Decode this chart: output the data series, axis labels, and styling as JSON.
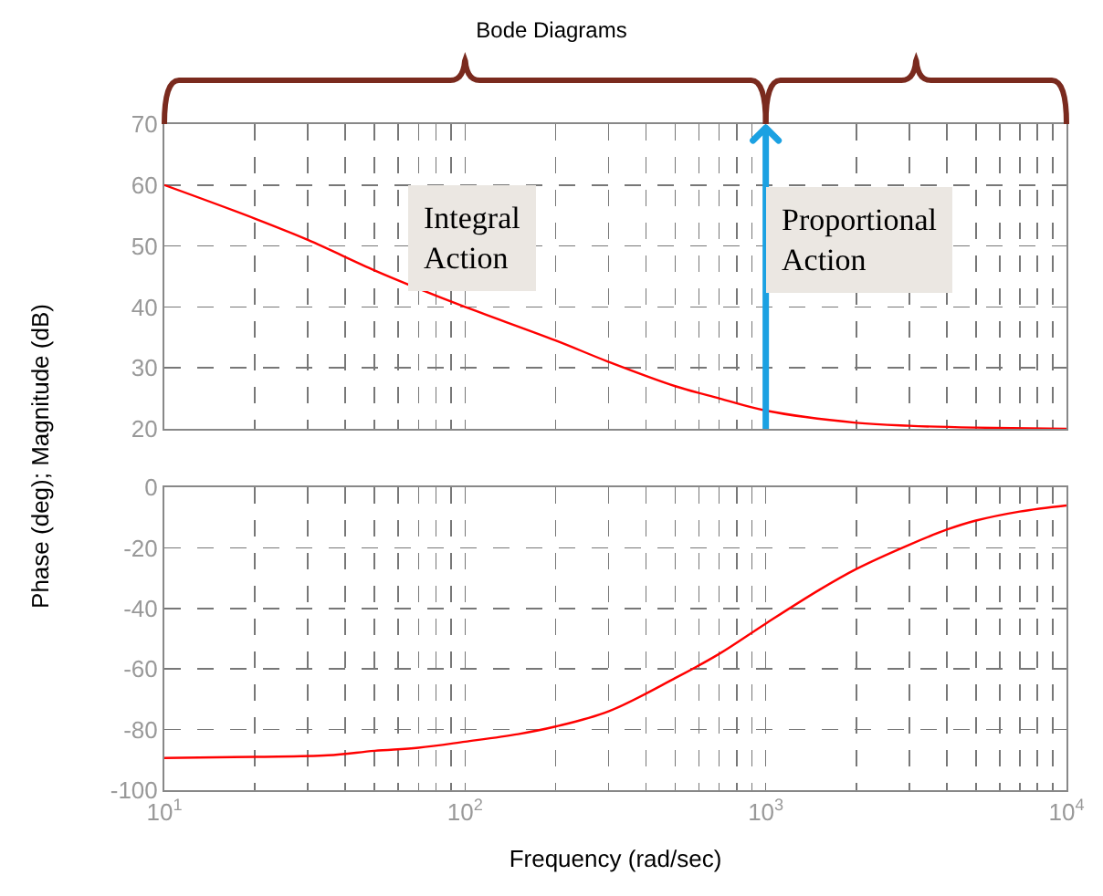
{
  "chart_data": [
    {
      "type": "line",
      "title": "Bode Diagrams",
      "ylabel": "Phase (deg); Magnitude (dB)",
      "x": [
        10,
        20,
        30,
        50,
        70,
        100,
        200,
        300,
        500,
        700,
        1000,
        2000,
        3000,
        5000,
        10000
      ],
      "series": [
        {
          "color": "#ff0000",
          "values": [
            60,
            54.5,
            51,
            46,
            43,
            40,
            34.5,
            31,
            27,
            25,
            23,
            21,
            20.5,
            20.2,
            20
          ]
        }
      ],
      "log": "x",
      "xlim": [
        10,
        10000
      ],
      "xticks": [
        {
          "value": 10,
          "label": null
        },
        {
          "value": 20,
          "label": null
        },
        {
          "value": 30,
          "label": null
        },
        {
          "value": 40,
          "label": null
        },
        {
          "value": 50,
          "label": null
        },
        {
          "value": 60,
          "label": null
        },
        {
          "value": 70,
          "label": null
        },
        {
          "value": 80,
          "label": null
        },
        {
          "value": 90,
          "label": null
        },
        {
          "value": 100,
          "label": null
        },
        {
          "value": 200,
          "label": null
        },
        {
          "value": 300,
          "label": null
        },
        {
          "value": 400,
          "label": null
        },
        {
          "value": 500,
          "label": null
        },
        {
          "value": 600,
          "label": null
        },
        {
          "value": 700,
          "label": null
        },
        {
          "value": 800,
          "label": null
        },
        {
          "value": 900,
          "label": null
        },
        {
          "value": 1000,
          "label": null
        },
        {
          "value": 2000,
          "label": null
        },
        {
          "value": 3000,
          "label": null
        },
        {
          "value": 4000,
          "label": null
        },
        {
          "value": 5000,
          "label": null
        },
        {
          "value": 6000,
          "label": null
        },
        {
          "value": 7000,
          "label": null
        },
        {
          "value": 8000,
          "label": null
        },
        {
          "value": 9000,
          "label": null
        },
        {
          "value": 10000,
          "label": null
        }
      ],
      "ylim": [
        20,
        70
      ],
      "yticks": [
        20,
        30,
        40,
        50,
        60,
        70
      ],
      "grid": true,
      "legend": false,
      "tick_labels": "y",
      "ref_lines": [
        {
          "axis": "x",
          "value": 1000,
          "color": "#1ba1e2"
        }
      ],
      "annotations": [
        "Integral Action",
        "Proportional Action"
      ]
    },
    {
      "type": "line",
      "xlabel": "Frequency (rad/sec)",
      "x": [
        10,
        20,
        35,
        50,
        70,
        100,
        150,
        200,
        300,
        500,
        700,
        1000,
        1500,
        2000,
        3000,
        4000,
        5000,
        7000,
        10000
      ],
      "series": [
        {
          "color": "#ff0000",
          "values": [
            -89.4,
            -89,
            -88.5,
            -87,
            -86,
            -84,
            -81.5,
            -79,
            -74,
            -63,
            -55,
            -45,
            -34,
            -27,
            -19,
            -14,
            -11,
            -8,
            -6
          ]
        }
      ],
      "log": "x",
      "xlim": [
        10,
        10000
      ],
      "xticks": [
        {
          "value": 10,
          "label": "10$^{1}$"
        },
        {
          "value": 20,
          "label": null
        },
        {
          "value": 30,
          "label": null
        },
        {
          "value": 40,
          "label": null
        },
        {
          "value": 50,
          "label": null
        },
        {
          "value": 60,
          "label": null
        },
        {
          "value": 70,
          "label": null
        },
        {
          "value": 80,
          "label": null
        },
        {
          "value": 90,
          "label": null
        },
        {
          "value": 100,
          "label": "10$^{2}$"
        },
        {
          "value": 200,
          "label": null
        },
        {
          "value": 300,
          "label": null
        },
        {
          "value": 400,
          "label": null
        },
        {
          "value": 500,
          "label": null
        },
        {
          "value": 600,
          "label": null
        },
        {
          "value": 700,
          "label": null
        },
        {
          "value": 800,
          "label": null
        },
        {
          "value": 900,
          "label": null
        },
        {
          "value": 1000,
          "label": "10$^{3}$"
        },
        {
          "value": 2000,
          "label": null
        },
        {
          "value": 3000,
          "label": null
        },
        {
          "value": 4000,
          "label": null
        },
        {
          "value": 5000,
          "label": null
        },
        {
          "value": 6000,
          "label": null
        },
        {
          "value": 7000,
          "label": null
        },
        {
          "value": 8000,
          "label": null
        },
        {
          "value": 9000,
          "label": null
        },
        {
          "value": 10000,
          "label": "10$^{4}$"
        }
      ],
      "ylim": [
        -100,
        0
      ],
      "yticks": [
        -100,
        -80,
        -60,
        -40,
        -20,
        0
      ],
      "grid": true,
      "legend": false
    }
  ]
}
